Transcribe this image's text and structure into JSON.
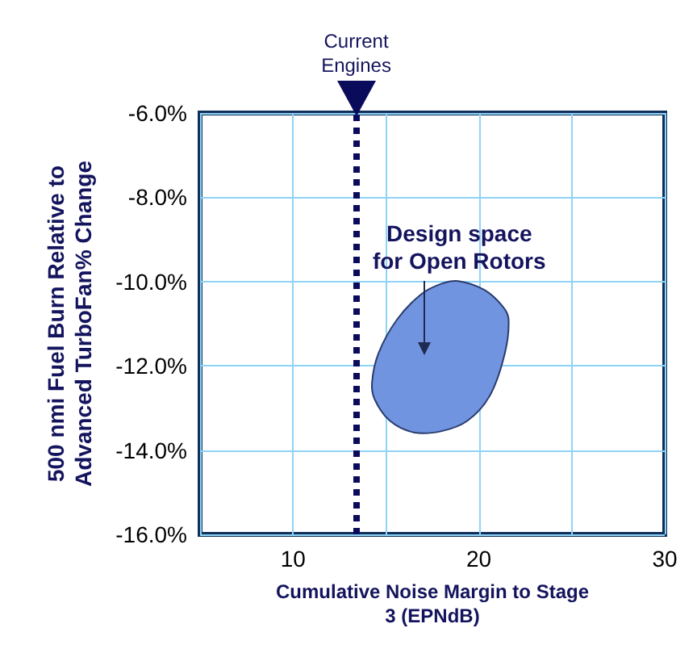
{
  "chart_data": {
    "type": "area",
    "xlabel": "Cumulative Noise Margin to Stage\n3 (EPNdB)",
    "ylabel": "500 nmi Fuel Burn Relative to\nAdvanced TurboFan% Change",
    "xlim": [
      5,
      30
    ],
    "xticks": [
      {
        "value": 5,
        "label": null
      },
      10,
      {
        "value": 15,
        "label": null
      },
      20,
      {
        "value": 25,
        "label": null
      },
      30
    ],
    "ylim": [
      -16,
      -6
    ],
    "yticks": [
      {
        "value": -16,
        "label": "-16.0%"
      },
      {
        "value": -14,
        "label": "-14.0%"
      },
      {
        "value": -12,
        "label": "-12.0%"
      },
      {
        "value": -10,
        "label": "-10.0%"
      },
      {
        "value": -8,
        "label": "-8.0%"
      },
      {
        "value": -6,
        "label": "-6.0%"
      }
    ],
    "grid": true,
    "series": [
      {
        "color": "#7194e0",
        "x": [
          18.9,
          20.3,
          21.3,
          21.6,
          21.4,
          20.6,
          19.4,
          18.0,
          16.5,
          15.2,
          14.4,
          14.25,
          14.6,
          15.6,
          16.9,
          18.0
        ],
        "values": [
          -9.99,
          -10.2,
          -10.6,
          -10.9,
          -11.7,
          -12.7,
          -13.3,
          -13.55,
          -13.58,
          -13.3,
          -12.8,
          -12.4,
          -11.7,
          -10.9,
          -10.3,
          -10.05
        ]
      }
    ],
    "ref_lines": [
      {
        "axis": "x",
        "value": 13.4,
        "label": "Current\nEngines",
        "color": "#0b0b5c",
        "line_style": "dotted"
      }
    ],
    "annotations": [
      "Design space\nfor Open Rotors"
    ]
  }
}
